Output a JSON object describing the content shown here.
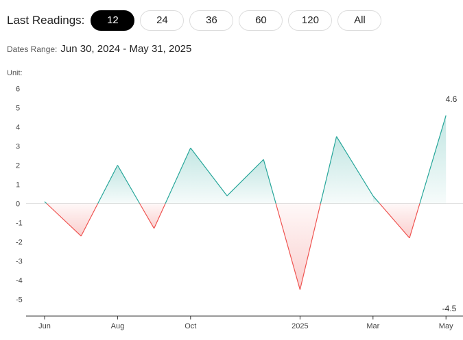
{
  "header": {
    "last_readings_label": "Last Readings:",
    "ranges": [
      "12",
      "24",
      "36",
      "60",
      "120",
      "All"
    ],
    "active_range": "12"
  },
  "dates_range": {
    "label": "Dates Range:",
    "value": "Jun 30, 2024 - May 31, 2025"
  },
  "unit_label": "Unit:",
  "colors": {
    "positive": "#26a69a",
    "negative": "#ef5350"
  },
  "chart_data": {
    "type": "area",
    "x": [
      "2024-06-30",
      "2024-07-31",
      "2024-08-31",
      "2024-09-30",
      "2024-10-31",
      "2024-11-30",
      "2024-12-31",
      "2025-01-31",
      "2025-02-28",
      "2025-03-31",
      "2025-04-30",
      "2025-05-31"
    ],
    "values": [
      0.1,
      -1.7,
      2.0,
      -1.3,
      2.9,
      0.4,
      2.3,
      -4.5,
      3.5,
      0.4,
      -1.8,
      4.6
    ],
    "ylim": [
      -5.5,
      6
    ],
    "y_ticks": [
      "-5",
      "-4",
      "-3",
      "-2",
      "-1",
      "0",
      "1",
      "2",
      "3",
      "4",
      "5",
      "6"
    ],
    "x_ticks": [
      {
        "label": "Jun",
        "index": 0
      },
      {
        "label": "Aug",
        "index": 2
      },
      {
        "label": "Oct",
        "index": 4
      },
      {
        "label": "2025",
        "index": 7
      },
      {
        "label": "Mar",
        "index": 9
      },
      {
        "label": "May",
        "index": 11
      }
    ],
    "annotations": {
      "max": "4.6",
      "min": "-4.5"
    },
    "baseline": 0,
    "grid": false
  }
}
